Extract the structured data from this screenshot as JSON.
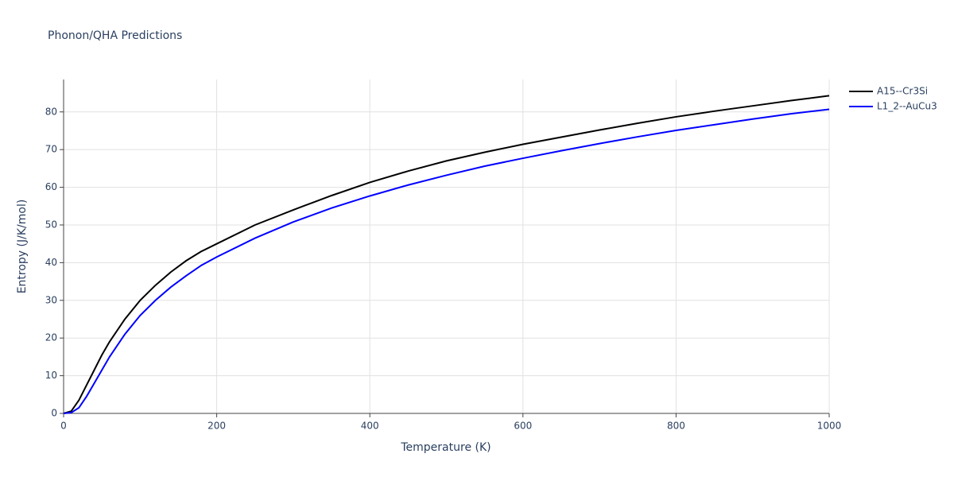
{
  "chart_data": {
    "type": "line",
    "title": "Phonon/QHA Predictions",
    "x_label": "Temperature (K)",
    "y_label": "Entropy (J/K/mol)",
    "x": [
      0,
      10,
      20,
      30,
      40,
      50,
      60,
      70,
      80,
      90,
      100,
      120,
      140,
      160,
      180,
      200,
      250,
      300,
      350,
      400,
      450,
      500,
      550,
      600,
      650,
      700,
      750,
      800,
      850,
      900,
      950,
      1000
    ],
    "series": [
      {
        "name": "A15--Cr3Si",
        "color": "#000000",
        "values": [
          0,
          0.6,
          3.5,
          7.5,
          11.5,
          15.5,
          19,
          22,
          25,
          27.5,
          30,
          34,
          37.5,
          40.5,
          43,
          45,
          50,
          54,
          57.8,
          61.3,
          64.3,
          67,
          69.3,
          71.4,
          73.3,
          75.2,
          77,
          78.7,
          80.2,
          81.6,
          83,
          84.3
        ]
      },
      {
        "name": "L1_2--AuCu3",
        "color": "#0000ff",
        "values": [
          0,
          0.2,
          1.5,
          4.5,
          8,
          11.5,
          15,
          18,
          21,
          23.5,
          26,
          30,
          33.5,
          36.5,
          39.3,
          41.5,
          46.5,
          50.8,
          54.5,
          57.7,
          60.6,
          63.2,
          65.6,
          67.7,
          69.7,
          71.6,
          73.4,
          75.1,
          76.6,
          78.1,
          79.5,
          80.7
        ]
      }
    ],
    "xlim": [
      0,
      1000
    ],
    "ylim": [
      0,
      88.6
    ],
    "xticks": [
      0,
      200,
      400,
      600,
      800,
      1000
    ],
    "yticks": [
      0,
      10,
      20,
      30,
      40,
      50,
      60,
      70,
      80
    ],
    "grid": true,
    "legend": "right"
  }
}
